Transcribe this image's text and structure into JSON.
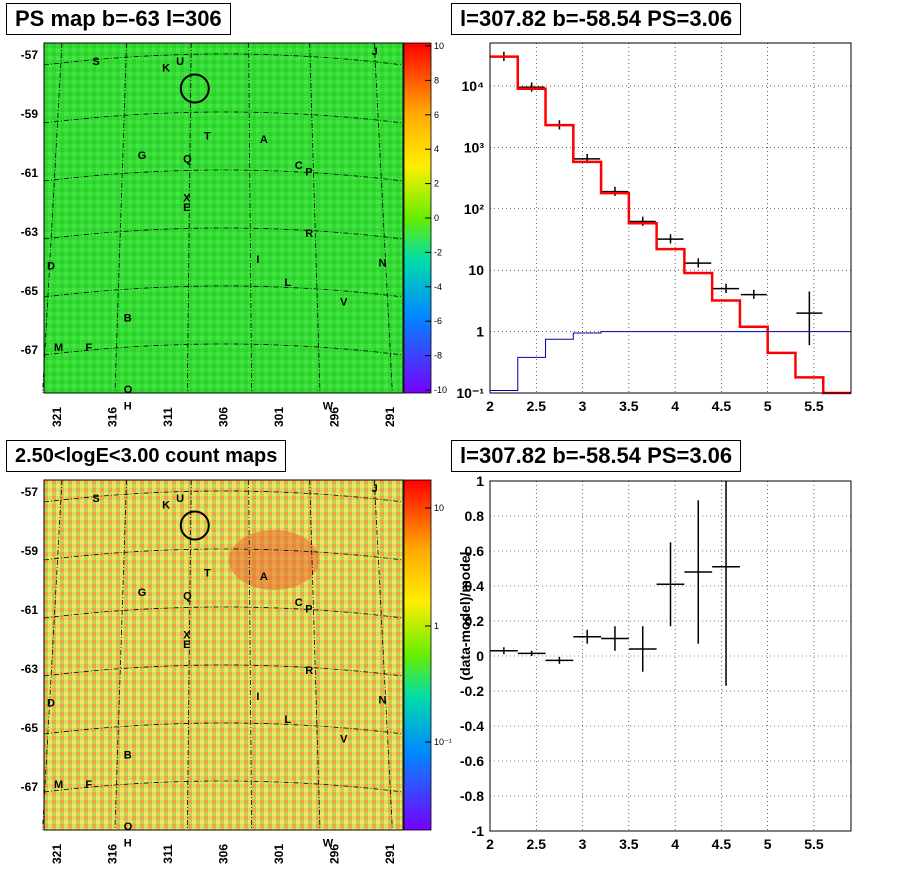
{
  "panels": {
    "map_top_title": "PS map b=-63 l=306",
    "spec_top_title": "l=307.82 b=-58.54 PS=3.06",
    "map_bottom_title": "2.50<logE<3.00 count maps",
    "spec_bottom_title": "l=307.82 b=-58.54 PS=3.06"
  },
  "maps": {
    "ylabels": [
      "-57",
      "-59",
      "-61",
      "-63",
      "-65",
      "-67"
    ],
    "xlabels": [
      "321",
      "316",
      "311",
      "306",
      "301",
      "296",
      "291"
    ],
    "top_colorbar": [
      "10",
      "8",
      "6",
      "4",
      "2",
      "0",
      "-2",
      "-4",
      "-6",
      "-8",
      "-10"
    ],
    "bottom_colorbar": [
      "10",
      "1",
      "10⁻¹"
    ],
    "sources": [
      {
        "name": "S",
        "fx": 0.13,
        "fy": 0.03
      },
      {
        "name": "K",
        "fx": 0.33,
        "fy": 0.05
      },
      {
        "name": "U",
        "fx": 0.37,
        "fy": 0.03
      },
      {
        "name": "J",
        "fx": 0.93,
        "fy": 0.0
      },
      {
        "name": "T",
        "fx": 0.45,
        "fy": 0.26
      },
      {
        "name": "A",
        "fx": 0.61,
        "fy": 0.27
      },
      {
        "name": "G",
        "fx": 0.26,
        "fy": 0.32
      },
      {
        "name": "Q",
        "fx": 0.39,
        "fy": 0.33
      },
      {
        "name": "C",
        "fx": 0.71,
        "fy": 0.35
      },
      {
        "name": "P",
        "fx": 0.74,
        "fy": 0.37
      },
      {
        "name": "X",
        "fx": 0.39,
        "fy": 0.45
      },
      {
        "name": "E",
        "fx": 0.39,
        "fy": 0.48
      },
      {
        "name": "R",
        "fx": 0.74,
        "fy": 0.56
      },
      {
        "name": "I",
        "fx": 0.6,
        "fy": 0.64
      },
      {
        "name": "N",
        "fx": 0.95,
        "fy": 0.65
      },
      {
        "name": "D",
        "fx": 0.0,
        "fy": 0.66
      },
      {
        "name": "L",
        "fx": 0.68,
        "fy": 0.71
      },
      {
        "name": "V",
        "fx": 0.84,
        "fy": 0.77
      },
      {
        "name": "B",
        "fx": 0.22,
        "fy": 0.82
      },
      {
        "name": "M",
        "fx": 0.02,
        "fy": 0.91
      },
      {
        "name": "F",
        "fx": 0.11,
        "fy": 0.91
      },
      {
        "name": "O",
        "fx": 0.22,
        "fy": 1.04
      },
      {
        "name": "H",
        "fx": 0.22,
        "fy": 1.09
      },
      {
        "name": "W",
        "fx": 0.79,
        "fy": 1.09
      }
    ]
  },
  "chart_data": [
    {
      "type": "line",
      "title": "l=307.82 b=-58.54 PS=3.06",
      "xlabel": "",
      "ylabel": "",
      "xlim": [
        2,
        5.9
      ],
      "ylim": [
        0.1,
        50000
      ],
      "yscale": "log",
      "xticks": [
        "2",
        "2.5",
        "3",
        "3.5",
        "4",
        "4.5",
        "5",
        "5.5"
      ],
      "yticks": [
        "10⁻¹",
        "1",
        "10",
        "10²",
        "10³",
        "10⁴"
      ],
      "series": [
        {
          "color": "#000000",
          "style": "points",
          "x": [
            2.15,
            2.45,
            2.75,
            3.05,
            3.35,
            3.65,
            3.95,
            4.25,
            4.55,
            4.85,
            5.45
          ],
          "y": [
            30000,
            9500,
            2300,
            650,
            190,
            62,
            32,
            13,
            5,
            4,
            2
          ],
          "yerr_lo": [
            0,
            0,
            0,
            0,
            0,
            0,
            0,
            0,
            0,
            0,
            1.4
          ],
          "yerr_hi": [
            0,
            0,
            0,
            0,
            0,
            0,
            0,
            0,
            0,
            0,
            2.5
          ]
        },
        {
          "color": "#ff0000",
          "style": "step",
          "edges": [
            2.0,
            2.3,
            2.6,
            2.9,
            3.2,
            3.5,
            3.8,
            4.1,
            4.4,
            4.7,
            5.0,
            5.3,
            5.6,
            5.9
          ],
          "values": [
            30000,
            9000,
            2300,
            580,
            180,
            58,
            22,
            9,
            3.2,
            1.2,
            0.45,
            0.18,
            0.1
          ]
        },
        {
          "color": "#0000aa",
          "style": "step",
          "edges": [
            2.0,
            2.3,
            2.6,
            2.9,
            3.2,
            3.5,
            3.8,
            4.1,
            4.4,
            4.7,
            5.0,
            5.3,
            5.6,
            5.9
          ],
          "values": [
            0.11,
            0.38,
            0.75,
            0.95,
            1.0,
            1.0,
            1.0,
            1.0,
            1.0,
            1.0,
            1.0,
            1.0,
            1.0
          ]
        }
      ]
    },
    {
      "type": "scatter",
      "title": "l=307.82 b=-58.54 PS=3.06",
      "xlabel": "",
      "ylabel": "(data-model)/model",
      "xlim": [
        2,
        5.9
      ],
      "ylim": [
        -1,
        1
      ],
      "xticks": [
        "2",
        "2.5",
        "3",
        "3.5",
        "4",
        "4.5",
        "5",
        "5.5"
      ],
      "yticks": [
        "-1",
        "-0.8",
        "-0.6",
        "-0.4",
        "-0.2",
        "0",
        "0.2",
        "0.4",
        "0.6",
        "0.8",
        "1"
      ],
      "series": [
        {
          "color": "#000000",
          "x": [
            2.15,
            2.45,
            2.75,
            3.05,
            3.35,
            3.65,
            3.95,
            4.25,
            4.55
          ],
          "y": [
            0.03,
            0.015,
            -0.025,
            0.11,
            0.1,
            0.04,
            0.41,
            0.48,
            0.51
          ],
          "yerr": [
            0.02,
            0.015,
            0.02,
            0.04,
            0.07,
            0.13,
            0.24,
            0.41,
            0.68
          ],
          "xerr": 0.15
        }
      ]
    }
  ]
}
